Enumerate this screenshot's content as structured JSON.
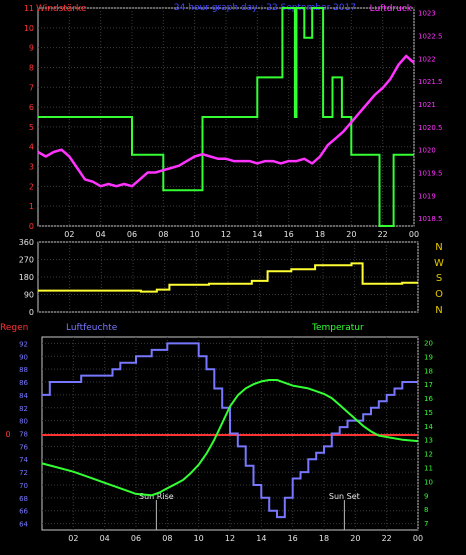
{
  "chart_data": [
    {
      "type": "line",
      "title": "24 hour graph day : 22 September 2017",
      "left_label": "Windstärke",
      "right_label": "Luftdruck",
      "x_ticks": [
        "02",
        "04",
        "06",
        "08",
        "10",
        "12",
        "14",
        "16",
        "18",
        "20",
        "22",
        "00"
      ],
      "y_left_ticks": [
        "0",
        "1",
        "2",
        "3",
        "4",
        "5",
        "6",
        "7",
        "8",
        "9",
        "10",
        "11"
      ],
      "y_left_range": [
        0,
        11
      ],
      "y_right_ticks": [
        "1018.5",
        "1019",
        "1019.5",
        "1020",
        "1020.5",
        "1021",
        "1021.5",
        "1022",
        "1022.5",
        "1023"
      ],
      "y_right_range": [
        1018.33,
        1023.1
      ],
      "grid": true,
      "series": [
        {
          "name": "Windstärke",
          "axis": "left",
          "color": "#33ff33",
          "step": true,
          "x": [
            0,
            0.2,
            6.0,
            7.1,
            8.0,
            10.1,
            10.5,
            13.0,
            14.0,
            15.0,
            15.6,
            16.4,
            16.5,
            17.0,
            17.5,
            18.2,
            18.8,
            19.4,
            20.0,
            21.0,
            21.8,
            22.3,
            22.7,
            23.0,
            23.2,
            24.0
          ],
          "values": [
            5.5,
            5.5,
            3.6,
            3.6,
            1.8,
            1.8,
            5.5,
            5.5,
            7.5,
            7.5,
            11,
            5.5,
            11,
            9.5,
            11,
            5.5,
            7.5,
            5.5,
            3.6,
            3.6,
            0,
            0,
            3.6,
            3.6,
            3.6,
            3.6
          ]
        },
        {
          "name": "Luftdruck",
          "axis": "right",
          "color": "#ff33ff",
          "x": [
            0,
            0.5,
            1.0,
            1.5,
            2.0,
            2.5,
            3.0,
            3.5,
            4.0,
            4.5,
            5.0,
            5.5,
            6.0,
            6.5,
            7.0,
            7.5,
            8.0,
            8.5,
            9.0,
            9.5,
            10.0,
            10.5,
            11.0,
            11.5,
            12.0,
            12.5,
            13.0,
            13.5,
            14.0,
            14.5,
            15.0,
            15.5,
            16.0,
            16.5,
            17.0,
            17.5,
            18.0,
            18.5,
            19.0,
            19.5,
            20.0,
            20.5,
            21.0,
            21.5,
            22.0,
            22.5,
            23.0,
            23.5,
            24.0
          ],
          "values": [
            1019.95,
            1019.85,
            1019.95,
            1020.0,
            1019.85,
            1019.6,
            1019.35,
            1019.3,
            1019.2,
            1019.25,
            1019.2,
            1019.25,
            1019.2,
            1019.35,
            1019.5,
            1019.5,
            1019.55,
            1019.6,
            1019.65,
            1019.75,
            1019.85,
            1019.9,
            1019.85,
            1019.8,
            1019.8,
            1019.75,
            1019.75,
            1019.75,
            1019.7,
            1019.75,
            1019.75,
            1019.7,
            1019.75,
            1019.75,
            1019.8,
            1019.7,
            1019.85,
            1020.1,
            1020.25,
            1020.4,
            1020.6,
            1020.8,
            1021.0,
            1021.2,
            1021.35,
            1021.55,
            1021.85,
            1022.05,
            1021.9
          ]
        }
      ]
    },
    {
      "type": "line",
      "x_ticks": [
        "02",
        "04",
        "06",
        "08",
        "10",
        "12",
        "14",
        "16",
        "18",
        "20",
        "22",
        "00"
      ],
      "y_ticks": [
        "0",
        "90",
        "180",
        "270",
        "360"
      ],
      "y_range": [
        0,
        360
      ],
      "compass_labels": [
        "N",
        "W",
        "S",
        "O",
        "N"
      ],
      "grid": true,
      "series": [
        {
          "color": "#ffff33",
          "step": true,
          "x": [
            0,
            6.5,
            7.5,
            8.3,
            10.8,
            13.5,
            14.5,
            16.0,
            17.5,
            19.8,
            20.5,
            23.0,
            24.0
          ],
          "values": [
            110,
            105,
            115,
            140,
            145,
            160,
            210,
            220,
            240,
            250,
            145,
            150,
            150
          ]
        }
      ]
    },
    {
      "type": "line",
      "left_label": "Regen",
      "mid_label": "Luftfeuchte",
      "right_label": "Temperatur",
      "x_ticks": [
        "02",
        "04",
        "06",
        "08",
        "10",
        "12",
        "14",
        "16",
        "18",
        "20",
        "22",
        "00"
      ],
      "annotations": [
        "Sun Rise",
        "Sun Set"
      ],
      "sun_rise_hour": 7.3,
      "sun_set_hour": 19.3,
      "y_humidity_ticks": [
        "64",
        "66",
        "68",
        "70",
        "72",
        "74",
        "76",
        "78",
        "80",
        "82",
        "84",
        "86",
        "88",
        "90",
        "92"
      ],
      "y_humidity_range": [
        63,
        93
      ],
      "rain_ticks": [
        "0"
      ],
      "rain_value": 0,
      "y_temp_ticks": [
        "7",
        "8",
        "9",
        "10",
        "11",
        "12",
        "13",
        "14",
        "15",
        "16",
        "17",
        "18",
        "19",
        "20"
      ],
      "y_temp_range": [
        6.5,
        20.4
      ],
      "grid": true,
      "series": [
        {
          "name": "Luftfeuchte",
          "axis": "humidity",
          "color": "#7777ff",
          "step": true,
          "x": [
            0,
            0.5,
            1.5,
            2.5,
            3.5,
            4.5,
            5.0,
            6.0,
            7.0,
            8.0,
            8.5,
            10.0,
            10.5,
            11.0,
            11.5,
            12.0,
            12.5,
            13.0,
            13.5,
            14.0,
            14.5,
            15.0,
            15.5,
            16.0,
            16.5,
            17.0,
            17.5,
            18.0,
            18.5,
            19.0,
            19.5,
            20.0,
            20.5,
            21.0,
            21.5,
            22.0,
            22.5,
            23.0,
            23.5,
            24.0
          ],
          "values": [
            84,
            86,
            86,
            87,
            87,
            88,
            89,
            90,
            91,
            92,
            92,
            90,
            88,
            85,
            82,
            78,
            76,
            73,
            70,
            68,
            66,
            65,
            68,
            71,
            72,
            74,
            75,
            76,
            78,
            79,
            80,
            80,
            81,
            82,
            83,
            84,
            85,
            86,
            86,
            86
          ]
        },
        {
          "name": "Temperatur",
          "axis": "temp",
          "color": "#33ff33",
          "x": [
            0,
            1.0,
            2.0,
            3.0,
            4.0,
            5.0,
            6.0,
            7.0,
            7.5,
            8.0,
            8.5,
            9.0,
            9.5,
            10.0,
            10.5,
            11.0,
            11.5,
            12.0,
            12.5,
            13.0,
            13.5,
            14.0,
            14.5,
            15.0,
            15.5,
            16.0,
            16.5,
            17.0,
            17.5,
            18.0,
            18.5,
            19.0,
            19.5,
            20.0,
            20.5,
            21.0,
            21.5,
            22.0,
            23.0,
            24.0
          ],
          "values": [
            11.3,
            11.0,
            10.7,
            10.3,
            9.9,
            9.5,
            9.1,
            9.0,
            9.2,
            9.5,
            9.8,
            10.1,
            10.6,
            11.2,
            12.0,
            13.0,
            14.2,
            15.4,
            16.2,
            16.7,
            17.0,
            17.2,
            17.3,
            17.3,
            17.1,
            16.9,
            16.8,
            16.7,
            16.5,
            16.3,
            16.0,
            15.5,
            15.0,
            14.5,
            14.0,
            13.6,
            13.3,
            13.2,
            13.0,
            12.9
          ]
        }
      ]
    }
  ]
}
